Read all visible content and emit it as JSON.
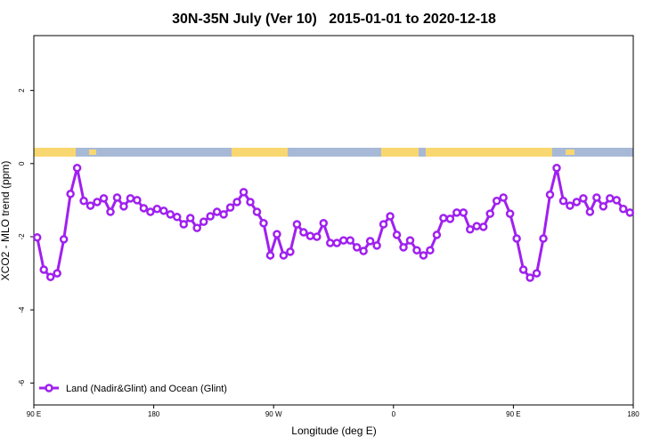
{
  "chart_data": {
    "type": "line",
    "title": "30N-35N July (Ver 10)   2015-01-01 to 2020-12-18",
    "x_label": "Longitude (deg E)",
    "y_label": "XCO2 - MLO trend (ppm)",
    "xlim": [
      90,
      540
    ],
    "ylim": [
      -6.6,
      3.5
    ],
    "xticks": [
      {
        "value": 90,
        "label": "90 E"
      },
      {
        "value": 180,
        "label": "180"
      },
      {
        "value": 270,
        "label": "90 W"
      },
      {
        "value": 360,
        "label": "0"
      },
      {
        "value": 450,
        "label": "90 E"
      },
      {
        "value": 540,
        "label": "180"
      }
    ],
    "yticks": [
      -6,
      -4,
      -2,
      0,
      2
    ],
    "legend": "bottom-left",
    "x": [
      92.5,
      97.5,
      102.5,
      107.5,
      112.5,
      117.5,
      122.5,
      127.5,
      132.5,
      137.5,
      142.5,
      147.5,
      152.5,
      157.5,
      162.5,
      167.5,
      172.5,
      177.5,
      182.5,
      187.5,
      192.5,
      197.5,
      202.5,
      207.5,
      212.5,
      217.5,
      222.5,
      227.5,
      232.5,
      237.5,
      242.5,
      247.5,
      252.5,
      257.5,
      262.5,
      267.5,
      272.5,
      277.5,
      282.5,
      287.5,
      292.5,
      297.5,
      302.5,
      307.5,
      312.5,
      317.5,
      322.5,
      327.5,
      332.5,
      337.5,
      342.5,
      347.5,
      352.5,
      357.5,
      362.5,
      367.5,
      372.5,
      377.5,
      382.5,
      387.5,
      392.5,
      397.5,
      402.5,
      407.5,
      412.5,
      417.5,
      422.5,
      427.5,
      432.5,
      437.5,
      442.5,
      447.5,
      452.5,
      457.5,
      462.5,
      467.5,
      472.5,
      477.5,
      482.5,
      487.5,
      492.5,
      497.5,
      502.5,
      507.5,
      512.5,
      517.5,
      522.5,
      527.5,
      532.5,
      537.5
    ],
    "series": [
      {
        "name": "Land (Nadir&Glint) and Ocean (Glint)",
        "color": "#a020f0",
        "values": [
          -2.02,
          -2.9,
          -3.1,
          -3.0,
          -2.07,
          -0.83,
          -0.12,
          -1.02,
          -1.15,
          -1.05,
          -0.95,
          -1.32,
          -0.93,
          -1.17,
          -0.95,
          -1.0,
          -1.22,
          -1.32,
          -1.24,
          -1.29,
          -1.39,
          -1.46,
          -1.66,
          -1.49,
          -1.76,
          -1.59,
          -1.44,
          -1.32,
          -1.39,
          -1.2,
          -1.05,
          -0.78,
          -1.05,
          -1.32,
          -1.63,
          -2.51,
          -1.93,
          -2.51,
          -2.41,
          -1.66,
          -1.88,
          -1.98,
          -2.0,
          -1.63,
          -2.17,
          -2.17,
          -2.1,
          -2.1,
          -2.29,
          -2.39,
          -2.12,
          -2.24,
          -1.66,
          -1.44,
          -1.95,
          -2.29,
          -2.1,
          -2.37,
          -2.51,
          -2.37,
          -1.95,
          -1.49,
          -1.51,
          -1.34,
          -1.34,
          -1.8,
          -1.71,
          -1.73,
          -1.37,
          -1.02,
          -0.93,
          -1.37,
          -2.05,
          -2.9,
          -3.12,
          -3.0,
          -2.05,
          -0.85,
          -0.12,
          -1.02,
          -1.15,
          -1.05,
          -0.95,
          -1.32,
          -0.93,
          -1.17,
          -0.95,
          -1.0,
          -1.24,
          -1.34
        ]
      }
    ]
  }
}
